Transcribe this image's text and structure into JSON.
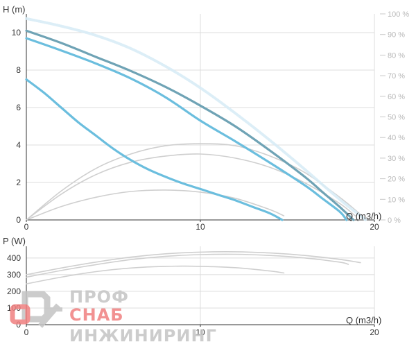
{
  "chart_data": [
    {
      "type": "line",
      "title": "",
      "ylabel": "H (m)",
      "xlabel": "Q (m3/h)",
      "xlim": [
        0,
        20
      ],
      "ylim": [
        0,
        11
      ],
      "x_ticks": [
        "0",
        "10",
        "20"
      ],
      "y_ticks": [
        "0",
        "2",
        "4",
        "6",
        "8",
        "10"
      ],
      "y2_ticks": [
        "0 %",
        "10 %",
        "20 %",
        "30 %",
        "40 %",
        "50 %",
        "60 %",
        "70 %",
        "80 %",
        "90 %",
        "100 %"
      ],
      "y2lim": [
        0,
        100
      ],
      "grid": true,
      "series": [
        {
          "role": "head",
          "color": "#6fa3b5",
          "x": [
            0,
            2,
            4,
            6,
            8,
            10,
            12,
            14,
            16,
            17,
            18,
            18.8
          ],
          "y": [
            10.1,
            9.45,
            8.7,
            7.95,
            7.1,
            6.1,
            5.0,
            3.7,
            2.3,
            1.5,
            0.7,
            0.0
          ]
        },
        {
          "role": "head",
          "color": "#6bbede",
          "x": [
            0,
            2,
            4,
            6,
            8,
            10,
            12,
            14,
            16,
            17,
            18,
            18.4
          ],
          "y": [
            9.7,
            9.05,
            8.35,
            7.55,
            6.55,
            5.3,
            4.2,
            3.05,
            1.85,
            1.15,
            0.45,
            0.0
          ]
        },
        {
          "role": "head",
          "color": "#6bbede",
          "x": [
            0,
            1,
            2,
            3,
            4,
            5,
            6,
            7,
            8,
            9,
            10,
            11,
            12,
            13,
            14,
            14.7
          ],
          "y": [
            7.5,
            6.8,
            6.0,
            5.2,
            4.5,
            3.8,
            3.2,
            2.7,
            2.3,
            1.95,
            1.65,
            1.35,
            1.05,
            0.7,
            0.35,
            0.0
          ]
        },
        {
          "role": "head-max",
          "color": "#d8ecf6",
          "x": [
            0,
            2,
            4,
            6,
            8,
            10,
            12,
            14,
            16,
            18,
            19.5
          ],
          "y": [
            10.75,
            10.35,
            9.85,
            9.15,
            8.2,
            7.05,
            5.7,
            4.25,
            2.7,
            1.1,
            0.0
          ]
        },
        {
          "role": "efficiency",
          "color": "#cfcfcf",
          "x": [
            0,
            2,
            4,
            6,
            8,
            10,
            12,
            14,
            16,
            18,
            19.3
          ],
          "y": [
            0,
            14,
            25,
            32,
            36,
            37,
            36,
            31,
            23,
            11,
            2
          ]
        },
        {
          "role": "efficiency",
          "color": "#cfcfcf",
          "x": [
            0,
            2,
            4,
            6,
            8,
            10,
            12,
            14,
            16,
            18,
            18.9
          ],
          "y": [
            0,
            12.5,
            22,
            28,
            31,
            32,
            30,
            25.5,
            18,
            8,
            2
          ]
        },
        {
          "role": "efficiency",
          "color": "#cfcfcf",
          "x": [
            0,
            2,
            4,
            6,
            8,
            10,
            12,
            14,
            14.8
          ],
          "y": [
            0,
            6.5,
            11,
            13.8,
            14.5,
            13.5,
            10.5,
            5,
            2
          ]
        }
      ]
    },
    {
      "type": "line",
      "title": "",
      "ylabel": "P (W)",
      "xlabel": "Q (m3/h)",
      "xlim": [
        0,
        20
      ],
      "ylim": [
        0,
        470
      ],
      "x_ticks": [
        "0",
        "10",
        "20"
      ],
      "y_ticks": [
        "0",
        "100",
        "200",
        "300",
        "400"
      ],
      "grid": true,
      "series": [
        {
          "role": "power",
          "color": "#cfcfcf",
          "x": [
            0,
            2,
            4,
            6,
            8,
            10,
            12,
            14,
            16,
            18,
            19.2
          ],
          "y": [
            300,
            340,
            375,
            405,
            425,
            435,
            437,
            430,
            415,
            392,
            372
          ]
        },
        {
          "role": "power",
          "color": "#cfcfcf",
          "x": [
            0,
            2,
            4,
            6,
            8,
            10,
            12,
            14,
            16,
            18,
            18.5
          ],
          "y": [
            285,
            325,
            360,
            390,
            410,
            420,
            422,
            415,
            400,
            375,
            362
          ]
        },
        {
          "role": "power",
          "color": "#cfcfcf",
          "x": [
            0,
            2,
            4,
            6,
            8,
            10,
            12,
            14,
            14.8
          ],
          "y": [
            245,
            285,
            318,
            340,
            350,
            350,
            342,
            322,
            310
          ]
        }
      ]
    }
  ],
  "watermark": {
    "line1": "ПРОФ",
    "line2": "СНАБ",
    "line3": "ИНЖИНИРИНГ",
    "color_gray": "#c4c4c4",
    "color_red": "#f07f7f"
  },
  "colors": {
    "grid": "#dcdcdc",
    "axis": "#333333",
    "head_dark": "#6fa3b5",
    "head_light": "#6bbede",
    "efficiency": "#cfcfcf"
  }
}
